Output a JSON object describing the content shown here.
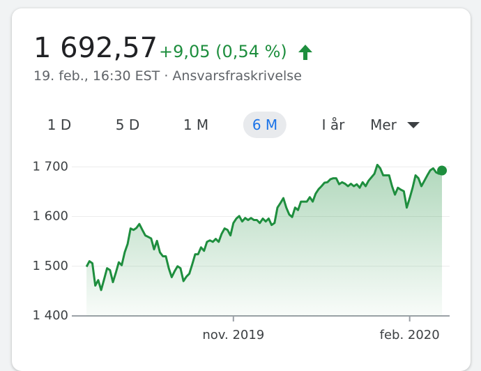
{
  "header": {
    "price": "1 692,57",
    "change": "+9,05 (0,54 %)",
    "timestamp": "19. feb., 16:30 EST ·",
    "disclaimer": "Ansvarsfraskrivelse"
  },
  "tabs": [
    "1 D",
    "5 D",
    "1 M",
    "6 M",
    "I år",
    "Mer"
  ],
  "selected_tab": 3,
  "chart_data": {
    "type": "area",
    "color": "#1e8e3e",
    "grid": true,
    "series": [
      {
        "name": null,
        "color": "#1e8e3e",
        "values": [
          1499,
          1510,
          1506,
          1461,
          1472,
          1452,
          1474,
          1496,
          1492,
          1468,
          1487,
          1508,
          1502,
          1528,
          1545,
          1576,
          1573,
          1577,
          1585,
          1573,
          1562,
          1559,
          1556,
          1534,
          1551,
          1528,
          1520,
          1520,
          1496,
          1478,
          1490,
          1500,
          1496,
          1470,
          1479,
          1485,
          1504,
          1524,
          1524,
          1538,
          1531,
          1549,
          1552,
          1549,
          1555,
          1549,
          1565,
          1576,
          1573,
          1562,
          1587,
          1596,
          1601,
          1590,
          1597,
          1593,
          1597,
          1593,
          1593,
          1587,
          1596,
          1590,
          1596,
          1583,
          1587,
          1618,
          1627,
          1637,
          1618,
          1604,
          1599,
          1618,
          1613,
          1630,
          1630,
          1630,
          1639,
          1630,
          1646,
          1655,
          1661,
          1668,
          1669,
          1675,
          1677,
          1677,
          1665,
          1669,
          1666,
          1661,
          1666,
          1661,
          1665,
          1658,
          1669,
          1661,
          1672,
          1679,
          1686,
          1704,
          1697,
          1683,
          1683,
          1683,
          1661,
          1644,
          1658,
          1654,
          1651,
          1618,
          1637,
          1658,
          1683,
          1677,
          1661,
          1672,
          1683,
          1693,
          1697,
          1689,
          1686,
          1692.57
        ]
      }
    ],
    "xlim": [
      -5,
      123.6
    ],
    "xticks": [
      {
        "value": 50,
        "label": "nov. 2019"
      },
      {
        "value": 110,
        "label": "feb. 2020"
      }
    ],
    "ylim": [
      1400,
      1720
    ],
    "yticks": [
      {
        "value": 1400,
        "label": "1 400"
      },
      {
        "value": 1500,
        "label": "1 500"
      },
      {
        "value": 1600,
        "label": "1 600"
      },
      {
        "value": 1700,
        "label": "1 700"
      }
    ]
  }
}
